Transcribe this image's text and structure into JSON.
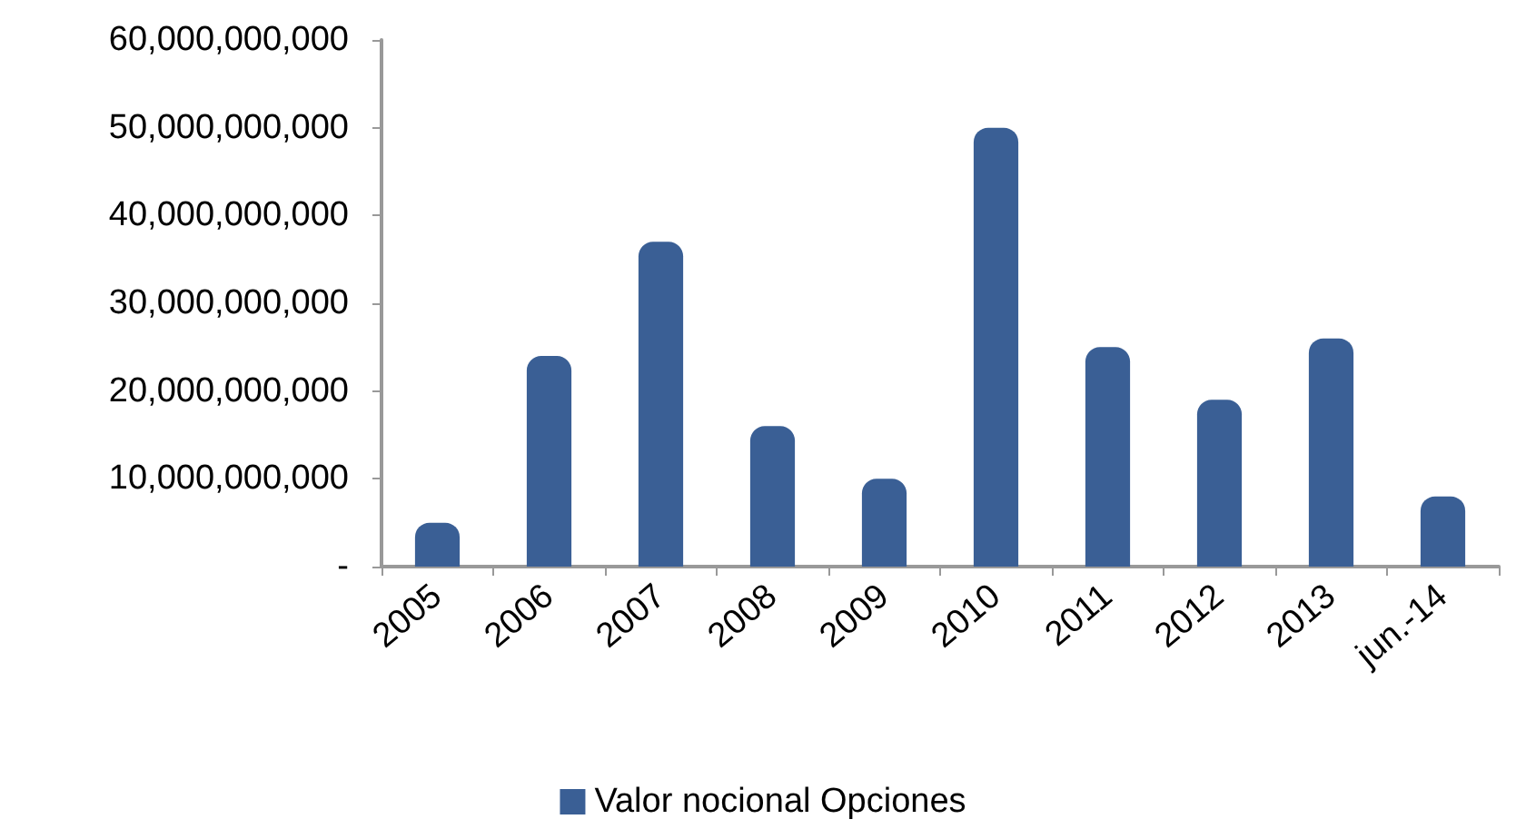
{
  "chart_data": {
    "type": "bar",
    "categories": [
      "2005",
      "2006",
      "2007",
      "2008",
      "2009",
      "2010",
      "2011",
      "2012",
      "2013",
      "jun.-14"
    ],
    "series": [
      {
        "name": "Valor nocional Opciones",
        "color": "#3a5f95",
        "values": [
          5000000000,
          24000000000,
          37000000000,
          16000000000,
          10000000000,
          50000000000,
          25000000000,
          19000000000,
          26000000000,
          8000000000
        ]
      }
    ],
    "ylim": [
      0,
      60000000000
    ],
    "yticks": [
      {
        "value": 0,
        "label": "-"
      },
      {
        "value": 10000000000,
        "label": "10,000,000,000"
      },
      {
        "value": 20000000000,
        "label": "20,000,000,000"
      },
      {
        "value": 30000000000,
        "label": "30,000,000,000"
      },
      {
        "value": 40000000000,
        "label": "40,000,000,000"
      },
      {
        "value": 50000000000,
        "label": "50,000,000,000"
      },
      {
        "value": 60000000000,
        "label": "60,000,000,000"
      }
    ],
    "grid": false,
    "legend": "bottom"
  }
}
